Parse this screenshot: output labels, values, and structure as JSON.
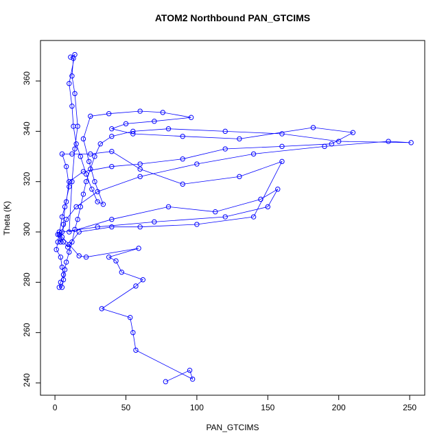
{
  "chart_data": {
    "type": "scatter-line",
    "title": "ATOM2 Northbound PAN_GTCIMS",
    "x_label": "PAN_GTCIMS",
    "y_label": "Theta (K)",
    "color": "#0000ff",
    "xlim": [
      -10.2,
      260.6
    ],
    "ylim": [
      235.1,
      376.1
    ],
    "xticks": [
      0,
      50,
      100,
      150,
      200,
      250
    ],
    "yticks": [
      240,
      260,
      280,
      300,
      320,
      340,
      360
    ],
    "series": [
      {
        "name": "PAN_GTCIMS",
        "x": [
          78,
          95,
          97,
          57,
          55,
          53,
          33,
          57,
          62,
          47,
          43,
          38,
          59,
          22,
          17,
          10,
          5,
          3,
          2,
          1,
          4,
          5,
          6,
          4,
          3,
          5,
          6,
          7,
          8,
          10,
          12,
          14,
          16,
          18,
          20,
          22,
          25,
          28,
          32,
          40,
          55,
          80,
          120,
          160,
          200,
          251,
          235,
          190,
          140,
          100,
          60,
          30,
          15,
          8,
          5,
          30,
          70,
          120,
          150,
          157,
          145,
          113,
          80,
          40,
          10,
          12,
          14,
          16,
          14,
          12,
          13,
          11,
          14,
          10,
          12,
          13,
          15,
          18,
          22,
          26,
          30,
          34,
          28,
          24,
          20,
          25,
          38,
          60,
          76,
          96,
          70,
          50,
          40,
          55,
          90,
          130,
          182,
          210,
          195,
          160,
          120,
          90,
          60,
          40,
          20,
          10,
          8,
          5,
          3,
          6,
          9,
          17,
          40,
          60,
          100,
          140,
          160,
          130,
          90,
          60,
          40,
          25,
          12,
          5,
          8,
          10,
          7,
          6,
          4,
          2
        ],
        "values": [
          240.5,
          245,
          241.5,
          253,
          260,
          266,
          269.5,
          278.5,
          281,
          284,
          288.5,
          290,
          293.5,
          290,
          290.5,
          295,
          298,
          300,
          296,
          293,
          290,
          286,
          283,
          280,
          278,
          278,
          281,
          285,
          288,
          292,
          296,
          301,
          305,
          310,
          315,
          320,
          325,
          330,
          335,
          338,
          340,
          341,
          340,
          339,
          336,
          335.5,
          336,
          334,
          331,
          327,
          322,
          316,
          310,
          305,
          300,
          302,
          304,
          306,
          310,
          317,
          313,
          308,
          310,
          305,
          300,
          320,
          333,
          342,
          355,
          362,
          369,
          369.5,
          370.5,
          359,
          350,
          342,
          335,
          330,
          323,
          317,
          312,
          311,
          320,
          328,
          337,
          346,
          347,
          348,
          347.5,
          345.5,
          344,
          343,
          341,
          339,
          338,
          337,
          341.5,
          339.5,
          335,
          334,
          333,
          329,
          327,
          326,
          324,
          320,
          312,
          306,
          299,
          296,
          294,
          300,
          302,
          302,
          303,
          306,
          328,
          322,
          319,
          325,
          332,
          331,
          331,
          331,
          326,
          318,
          310,
          303,
          296,
          299
        ]
      }
    ],
    "grid": false
  }
}
